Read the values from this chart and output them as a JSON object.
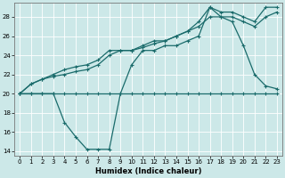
{
  "xlabel": "Humidex (Indice chaleur)",
  "xlim": [
    -0.5,
    23.5
  ],
  "ylim": [
    13.5,
    29.5
  ],
  "xticks": [
    0,
    1,
    2,
    3,
    4,
    5,
    6,
    7,
    8,
    9,
    10,
    11,
    12,
    13,
    14,
    15,
    16,
    17,
    18,
    19,
    20,
    21,
    22,
    23
  ],
  "yticks": [
    14,
    16,
    18,
    20,
    22,
    24,
    26,
    28
  ],
  "bg_color": "#cce8e8",
  "line_color": "#1a6b6b",
  "line_flat_x": [
    0,
    1,
    2,
    3,
    4,
    5,
    6,
    7,
    8,
    9,
    10,
    11,
    12,
    13,
    14,
    15,
    16,
    17,
    18,
    19,
    20,
    21,
    22,
    23
  ],
  "line_flat_y": [
    20,
    20,
    20,
    20,
    20,
    20,
    20,
    20,
    20,
    20,
    20,
    20,
    20,
    20,
    20,
    20,
    20,
    20,
    20,
    20,
    20,
    20,
    20,
    20
  ],
  "line_dip_x": [
    0,
    1,
    2,
    3,
    4,
    5,
    6,
    7,
    8,
    9,
    10,
    11,
    12,
    13,
    14,
    15,
    16,
    17,
    18,
    19,
    20,
    21,
    22,
    23
  ],
  "line_dip_y": [
    20,
    20,
    20,
    20,
    17,
    15.5,
    14.2,
    14.2,
    14.2,
    20,
    23,
    24.5,
    24.5,
    25,
    25,
    25.5,
    26,
    29,
    28,
    27.5,
    25,
    22,
    20.8,
    20.5
  ],
  "line_upper_x": [
    0,
    1,
    2,
    3,
    4,
    5,
    6,
    7,
    8,
    9,
    10,
    11,
    12,
    13,
    14,
    15,
    16,
    17,
    18,
    19,
    20,
    21,
    22,
    23
  ],
  "line_upper_y": [
    20,
    21,
    21.5,
    22,
    22.5,
    22.8,
    23,
    23.5,
    24.5,
    24.5,
    24.5,
    25,
    25.5,
    25.5,
    26,
    26.5,
    27.5,
    29,
    28.5,
    28.5,
    28,
    27.5,
    29,
    29
  ],
  "line_mid_x": [
    0,
    1,
    2,
    3,
    4,
    5,
    6,
    7,
    8,
    9,
    10,
    11,
    12,
    13,
    14,
    15,
    16,
    17,
    18,
    19,
    20,
    21,
    22,
    23
  ],
  "line_mid_y": [
    20,
    21,
    21.5,
    21.8,
    22,
    22.3,
    22.5,
    23,
    24,
    24.5,
    24.5,
    24.8,
    25.2,
    25.5,
    26,
    26.5,
    27,
    28,
    28,
    28,
    27.5,
    27,
    28,
    28.5
  ]
}
